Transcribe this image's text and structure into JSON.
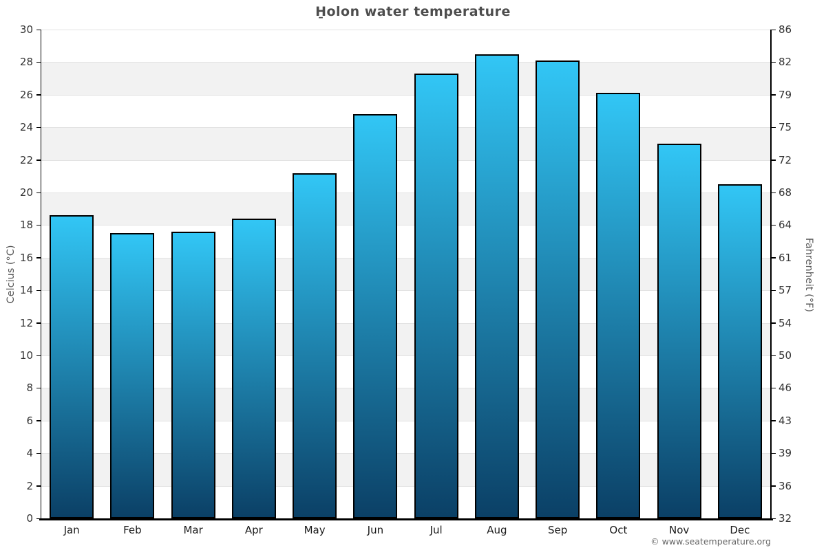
{
  "title": "H̱olon water temperature",
  "attribution": "© www.seatemperature.org",
  "chart_data": {
    "type": "bar",
    "title": "H̱olon water temperature",
    "categories": [
      "Jan",
      "Feb",
      "Mar",
      "Apr",
      "May",
      "Jun",
      "Jul",
      "Aug",
      "Sep",
      "Oct",
      "Nov",
      "Dec"
    ],
    "values": [
      18.6,
      17.5,
      17.6,
      18.4,
      21.2,
      24.8,
      27.3,
      28.5,
      28.1,
      26.1,
      23.0,
      20.5
    ],
    "ylabel_left": "Celcius (°C)",
    "ylabel_right": "Fahrenheit (°F)",
    "ylim_c": [
      0,
      30
    ],
    "yticks_c": [
      0,
      2,
      4,
      6,
      8,
      10,
      12,
      14,
      16,
      18,
      20,
      22,
      24,
      26,
      28,
      30
    ],
    "yticks_f": [
      32,
      36,
      39,
      43,
      46,
      50,
      54,
      57,
      61,
      64,
      68,
      72,
      75,
      79,
      82,
      86
    ],
    "grid": true,
    "legend": "none",
    "colors": {
      "bar_gradient_top": "#32c6f5",
      "bar_gradient_bottom": "#0b4066",
      "bar_border": "#000000",
      "band_gray": "#f2f2f2",
      "band_white": "#ffffff",
      "gridline": "#e2e2e2",
      "axis": "#000000",
      "title_text": "#4d4d4d",
      "label_text": "#333333",
      "attribution_text": "#666666"
    }
  }
}
